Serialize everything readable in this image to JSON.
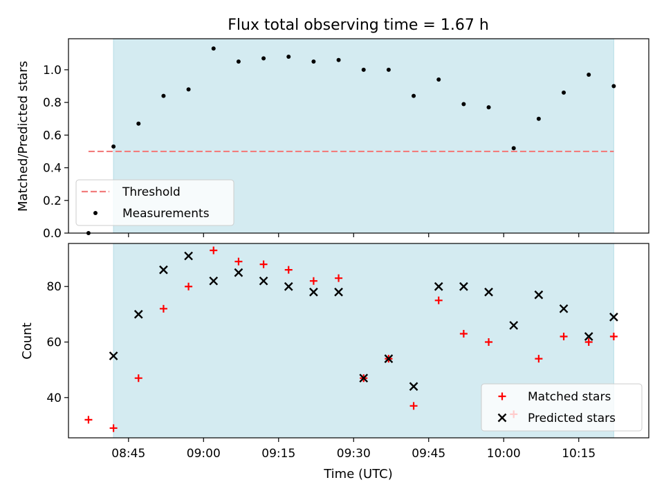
{
  "title": "Flux total observing time = 1.67 h",
  "colors": {
    "shade": "#d4ebf1",
    "threshold": "#f27c7c",
    "measurement": "#000000",
    "matched": "#ff0000",
    "predicted": "#000000"
  },
  "chart_data": [
    {
      "type": "scatter",
      "ylabel": "Matched/Predicted stars",
      "ylim": [
        0,
        1.19
      ],
      "yticks": [
        0.0,
        0.2,
        0.4,
        0.6,
        0.8,
        1.0
      ],
      "ytick_labels": [
        "0.0",
        "0.2",
        "0.4",
        "0.6",
        "0.8",
        "1.0"
      ],
      "shaded_span": [
        "08:42",
        "10:22"
      ],
      "legend": {
        "placement": "lower-left",
        "entries": [
          "Threshold",
          "Measurements"
        ]
      },
      "threshold": {
        "name": "Threshold",
        "value": 0.5,
        "x_range": [
          "08:37",
          "10:22"
        ]
      },
      "series": [
        {
          "name": "Measurements",
          "x": [
            "08:37",
            "08:42",
            "08:47",
            "08:52",
            "08:57",
            "09:02",
            "09:07",
            "09:12",
            "09:17",
            "09:22",
            "09:27",
            "09:32",
            "09:37",
            "09:42",
            "09:47",
            "09:52",
            "09:57",
            "10:02",
            "10:07",
            "10:12",
            "10:17",
            "10:22"
          ],
          "values": [
            0.0,
            0.53,
            0.67,
            0.84,
            0.88,
            1.13,
            1.05,
            1.07,
            1.08,
            1.05,
            1.06,
            1.0,
            1.0,
            0.84,
            0.94,
            0.79,
            0.77,
            0.52,
            0.7,
            0.86,
            0.97,
            0.9
          ]
        }
      ]
    },
    {
      "type": "scatter",
      "xlabel": "Time (UTC)",
      "ylabel": "Count",
      "ylim": [
        25.5,
        95.5
      ],
      "yticks": [
        40,
        60,
        80
      ],
      "ytick_labels": [
        "40",
        "60",
        "80"
      ],
      "xticks": [
        "08:45",
        "09:00",
        "09:15",
        "09:30",
        "09:45",
        "10:00",
        "10:15"
      ],
      "xlim": [
        "08:33",
        "10:29"
      ],
      "shaded_span": [
        "08:42",
        "10:22"
      ],
      "legend": {
        "placement": "lower-right",
        "entries": [
          "Matched stars",
          "Predicted stars"
        ]
      },
      "series": [
        {
          "name": "Matched stars",
          "marker": "plus",
          "x": [
            "08:37",
            "08:42",
            "08:47",
            "08:52",
            "08:57",
            "09:02",
            "09:07",
            "09:12",
            "09:17",
            "09:22",
            "09:27",
            "09:32",
            "09:37",
            "09:42",
            "09:47",
            "09:52",
            "09:57",
            "10:02",
            "10:07",
            "10:12",
            "10:17",
            "10:22"
          ],
          "values": [
            32,
            29,
            47,
            72,
            80,
            93,
            89,
            88,
            86,
            82,
            83,
            47,
            54,
            37,
            75,
            63,
            60,
            34,
            54,
            62,
            60,
            62
          ]
        },
        {
          "name": "Predicted stars",
          "marker": "x",
          "x": [
            "08:42",
            "08:47",
            "08:52",
            "08:57",
            "09:02",
            "09:07",
            "09:12",
            "09:17",
            "09:22",
            "09:27",
            "09:32",
            "09:37",
            "09:42",
            "09:47",
            "09:52",
            "09:57",
            "10:02",
            "10:07",
            "10:12",
            "10:17",
            "10:22"
          ],
          "values": [
            55,
            70,
            86,
            91,
            82,
            85,
            82,
            80,
            78,
            78,
            47,
            54,
            44,
            80,
            80,
            78,
            66,
            77,
            72,
            62,
            69
          ]
        }
      ]
    }
  ]
}
